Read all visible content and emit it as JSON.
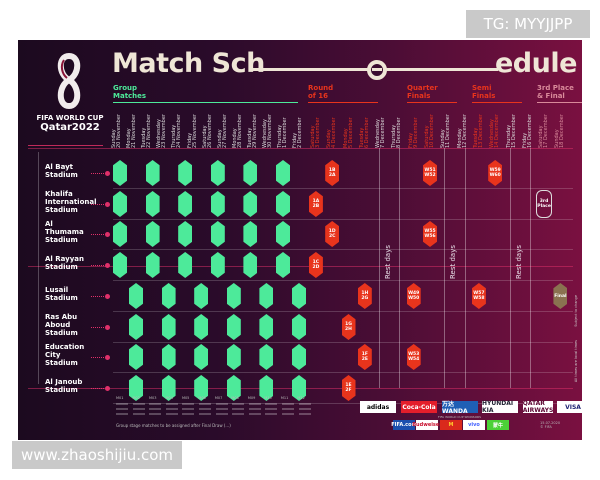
{
  "watermarks": {
    "top_right": "TG: MYYJJPP",
    "bottom_left": "www.zhaoshijiu.com"
  },
  "header": {
    "title_left": "Match Sch",
    "title_right": "edule",
    "logo_line1": "FIFA WORLD CUP",
    "logo_line2": "Qatar2022"
  },
  "stages": [
    {
      "label": "Group\nMatches",
      "color": "#4dea9a"
    },
    {
      "label": "Round\nof 16",
      "color": "#e8341c"
    },
    {
      "label": "Quarter\nFinals",
      "color": "#e8341c"
    },
    {
      "label": "Semi\nFinals",
      "color": "#e8341c"
    },
    {
      "label": "3rd Place\n& Final",
      "color": "#d98a9a"
    }
  ],
  "dates": [
    "Sunday\n20 November",
    "Monday\n21 November",
    "Tuesday\n22 November",
    "Wednesday\n23 November",
    "Thursday\n24 November",
    "Friday\n25 November",
    "Saturday\n26 November",
    "Sunday\n27 November",
    "Monday\n28 November",
    "Tuesday\n29 November",
    "Wednesday\n30 November",
    "Thursday\n1 December",
    "Friday\n2 December",
    "Saturday\n3 December",
    "Sunday\n4 December",
    "Monday\n5 December",
    "Tuesday\n6 December",
    "Wednesday\n7 December",
    "Thursday\n8 December",
    "Friday\n9 December",
    "Saturday\n10 December",
    "Sunday\n11 December",
    "Monday\n12 December",
    "Tuesday\n13 December",
    "Wednesday\n14 December",
    "Thursday\n15 December",
    "Friday\n16 December",
    "Saturday\n17 December",
    "Sunday\n18 December"
  ],
  "stadiums": [
    {
      "name": "Al Bayt\nStadium",
      "group_matches": 6
    },
    {
      "name": "Khalifa\nInternational\nStadium",
      "group_matches": 6
    },
    {
      "name": "Al\nThumama\nStadium",
      "group_matches": 6
    },
    {
      "name": "Al Rayyan\nStadium",
      "group_matches": 6
    },
    {
      "name": "Lusail\nStadium",
      "group_matches": 6
    },
    {
      "name": "Ras Abu\nAboud\nStadium",
      "group_matches": 6
    },
    {
      "name": "Education\nCity\nStadium",
      "group_matches": 6
    },
    {
      "name": "Al Janoub\nStadium",
      "group_matches": 6
    }
  ],
  "knockout": [
    {
      "stadium": 0,
      "date": 14,
      "home": "1B",
      "away": "2A",
      "kind": "r"
    },
    {
      "stadium": 1,
      "date": 13,
      "home": "1A",
      "away": "2B",
      "kind": "r"
    },
    {
      "stadium": 2,
      "date": 14,
      "home": "1D",
      "away": "2C",
      "kind": "r"
    },
    {
      "stadium": 3,
      "date": 13,
      "home": "1C",
      "away": "2D",
      "kind": "r"
    },
    {
      "stadium": 4,
      "date": 16,
      "home": "1H",
      "away": "2G",
      "kind": "r"
    },
    {
      "stadium": 5,
      "date": 15,
      "home": "1G",
      "away": "2H",
      "kind": "r"
    },
    {
      "stadium": 6,
      "date": 16,
      "home": "1F",
      "away": "2E",
      "kind": "r"
    },
    {
      "stadium": 7,
      "date": 15,
      "home": "1E",
      "away": "2F",
      "kind": "r"
    },
    {
      "stadium": 0,
      "date": 20,
      "home": "W51",
      "away": "W52",
      "kind": "r"
    },
    {
      "stadium": 2,
      "date": 20,
      "home": "W55",
      "away": "W56",
      "kind": "r"
    },
    {
      "stadium": 4,
      "date": 19,
      "home": "W49",
      "away": "W50",
      "kind": "r"
    },
    {
      "stadium": 6,
      "date": 19,
      "home": "W53",
      "away": "W54",
      "kind": "r"
    },
    {
      "stadium": 0,
      "date": 24,
      "home": "W59",
      "away": "W60",
      "kind": "r"
    },
    {
      "stadium": 4,
      "date": 23,
      "home": "W57",
      "away": "W58",
      "kind": "r"
    },
    {
      "stadium": 1,
      "date": 27,
      "home": "3rd",
      "away": "Place",
      "kind": "w"
    },
    {
      "stadium": 4,
      "date": 28,
      "home": "Final",
      "away": "",
      "kind": "t"
    }
  ],
  "rest_days_label": "Rest days",
  "side_notes": [
    "All times are local times",
    "Subject to change"
  ],
  "match_numbers": [
    "M01",
    "M02",
    "M03",
    "M04",
    "M05",
    "M06",
    "M07",
    "M08",
    "M09",
    "M10",
    "M11",
    "M12"
  ],
  "footnote": "Group stage matches to be assigned after Final Draw (...)",
  "sponsors": {
    "row1": [
      {
        "name": "adidas",
        "bg": "#ffffff",
        "fg": "#000"
      },
      {
        "name": "Coca-Cola",
        "bg": "#e41e2b",
        "fg": "#fff"
      },
      {
        "name": "万达 WANDA",
        "bg": "#1f5fb5",
        "fg": "#fff"
      },
      {
        "name": "HYUNDAI  KIA",
        "bg": "#ffffff",
        "fg": "#223"
      },
      {
        "name": "QATAR AIRWAYS",
        "bg": "#ffffff",
        "fg": "#5c0632"
      },
      {
        "name": "VISA",
        "bg": "#ffffff",
        "fg": "#1a1f71"
      }
    ],
    "row2_label": "FIFA WORLD CUP SPONSORS",
    "row2": [
      {
        "name": "FIFA.com",
        "bg": "#1c4fae",
        "fg": "#fff"
      },
      {
        "name": "Budweiser",
        "bg": "#ffffff",
        "fg": "#c8102e"
      },
      {
        "name": "M",
        "bg": "#da291c",
        "fg": "#ffc72c"
      },
      {
        "name": "vivo",
        "bg": "#ffffff",
        "fg": "#415fff"
      },
      {
        "name": "蒙牛",
        "bg": "#4cd137",
        "fg": "#fff"
      }
    ],
    "date_note": "15.07.2020\n© FIFA"
  },
  "colors": {
    "group": "#4dea9a",
    "knockout": "#e8341c",
    "final": "#8a7250",
    "background": "#2a0b2a"
  }
}
